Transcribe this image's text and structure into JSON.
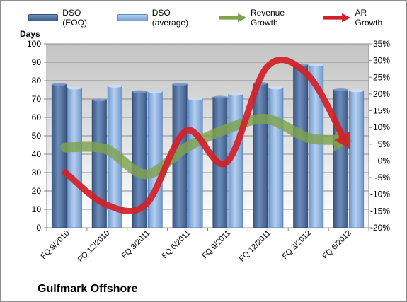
{
  "chart_data": {
    "type": "bar",
    "title": "",
    "company": "Gulfmark Offshore",
    "ylabel": "Days",
    "ylim": [
      0,
      100
    ],
    "y2lim": [
      -20,
      35
    ],
    "y_ticks": [
      "0",
      "10",
      "20",
      "30",
      "40",
      "50",
      "60",
      "70",
      "80",
      "90",
      "100"
    ],
    "y2_ticks": [
      "-20%",
      "-15%",
      "-10%",
      "-5%",
      "0%",
      "5%",
      "10%",
      "15%",
      "20%",
      "25%",
      "30%",
      "35%"
    ],
    "grid": true,
    "legend_position": "top",
    "categories": [
      "FQ 9/2010",
      "FQ 12/2010",
      "FQ 3/2011",
      "FQ 6/2011",
      "FQ 9/2011",
      "FQ 12/2011",
      "FQ 3/2012",
      "FQ 6/2012"
    ],
    "series": [
      {
        "name": "DSO (EOQ)",
        "kind": "bar",
        "axis": "left",
        "color": "#4a6b9c",
        "values": [
          78,
          69.5,
          74,
          78,
          71,
          78.5,
          88.5,
          75
        ]
      },
      {
        "name": "DSO (average)",
        "kind": "bar",
        "axis": "left",
        "color": "#8fb3e3",
        "values": [
          76,
          77,
          74,
          70,
          72.5,
          76,
          88.5,
          74.5
        ]
      },
      {
        "name": "Revenue Growth",
        "kind": "arrow-line",
        "axis": "right",
        "color": "#7fa24e",
        "values": [
          4,
          3.5,
          -4,
          4,
          9.5,
          12.5,
          7,
          6
        ]
      },
      {
        "name": "AR Growth",
        "kind": "arrow-line",
        "axis": "right",
        "color": "#d31f27",
        "values": [
          -3.5,
          -13,
          -13,
          9,
          -0.5,
          28,
          26,
          5
        ]
      }
    ]
  }
}
